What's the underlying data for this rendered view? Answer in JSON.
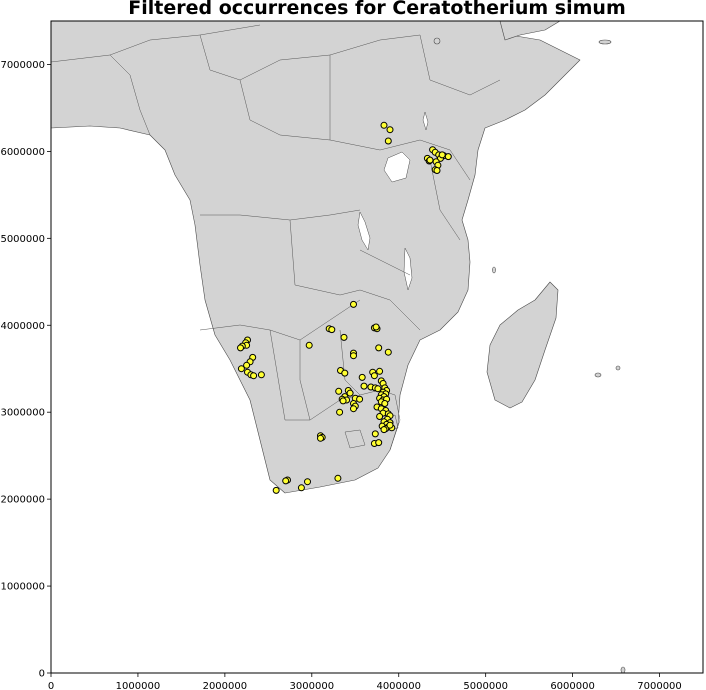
{
  "title": "Filtered occurrences for Ceratotherium simum",
  "chart_data": {
    "type": "scatter",
    "title": "Filtered occurrences for Ceratotherium simum",
    "xlim": [
      0,
      7500000
    ],
    "ylim": [
      0,
      7500000
    ],
    "xticks": [
      0,
      1000000,
      2000000,
      3000000,
      4000000,
      5000000,
      6000000,
      7000000
    ],
    "yticks": [
      0,
      1000000,
      2000000,
      3000000,
      4000000,
      5000000,
      6000000,
      7000000
    ],
    "xtick_labels": [
      "0",
      "1000000",
      "2000000",
      "3000000",
      "4000000",
      "5000000",
      "6000000",
      "7000000"
    ],
    "ytick_labels": [
      "0",
      "1000000",
      "2000000",
      "3000000",
      "4000000",
      "5000000",
      "6000000",
      "7000000"
    ],
    "grid": false,
    "land_color": "#d3d3d3",
    "ocean_color": "#ffffff",
    "marker_color": "#ffff33",
    "marker_edge_color": "#000000",
    "points": [
      [
        3830000,
        6300000
      ],
      [
        3900000,
        6250000
      ],
      [
        3880000,
        6120000
      ],
      [
        4390000,
        6020000
      ],
      [
        4420000,
        5990000
      ],
      [
        4460000,
        5960000
      ],
      [
        4520000,
        5950000
      ],
      [
        4570000,
        5940000
      ],
      [
        4330000,
        5920000
      ],
      [
        4350000,
        5890000
      ],
      [
        4480000,
        5920000
      ],
      [
        4430000,
        5880000
      ],
      [
        4450000,
        5840000
      ],
      [
        4420000,
        5790000
      ],
      [
        4440000,
        5780000
      ],
      [
        4360000,
        5900000
      ],
      [
        4500000,
        5960000
      ],
      [
        3480000,
        4240000
      ],
      [
        3200000,
        3960000
      ],
      [
        3230000,
        3950000
      ],
      [
        3720000,
        3970000
      ],
      [
        3750000,
        3960000
      ],
      [
        3740000,
        3980000
      ],
      [
        3370000,
        3860000
      ],
      [
        2970000,
        3770000
      ],
      [
        3480000,
        3680000
      ],
      [
        3480000,
        3650000
      ],
      [
        3770000,
        3740000
      ],
      [
        3880000,
        3690000
      ],
      [
        2260000,
        3830000
      ],
      [
        2240000,
        3800000
      ],
      [
        2250000,
        3770000
      ],
      [
        2200000,
        3760000
      ],
      [
        2180000,
        3740000
      ],
      [
        2320000,
        3630000
      ],
      [
        2290000,
        3580000
      ],
      [
        2250000,
        3540000
      ],
      [
        2190000,
        3500000
      ],
      [
        2260000,
        3460000
      ],
      [
        2300000,
        3430000
      ],
      [
        2330000,
        3420000
      ],
      [
        2420000,
        3430000
      ],
      [
        3330000,
        3480000
      ],
      [
        3380000,
        3450000
      ],
      [
        3580000,
        3400000
      ],
      [
        3700000,
        3460000
      ],
      [
        3780000,
        3470000
      ],
      [
        3720000,
        3420000
      ],
      [
        3800000,
        3360000
      ],
      [
        3820000,
        3330000
      ],
      [
        3600000,
        3300000
      ],
      [
        3680000,
        3290000
      ],
      [
        3730000,
        3280000
      ],
      [
        3760000,
        3270000
      ],
      [
        3840000,
        3280000
      ],
      [
        3860000,
        3250000
      ],
      [
        3820000,
        3230000
      ],
      [
        3850000,
        3210000
      ],
      [
        3800000,
        3200000
      ],
      [
        3830000,
        3180000
      ],
      [
        3780000,
        3160000
      ],
      [
        3820000,
        3140000
      ],
      [
        3860000,
        3150000
      ],
      [
        3800000,
        3120000
      ],
      [
        3840000,
        3100000
      ],
      [
        3420000,
        3250000
      ],
      [
        3310000,
        3240000
      ],
      [
        3440000,
        3220000
      ],
      [
        3380000,
        3180000
      ],
      [
        3500000,
        3160000
      ],
      [
        3550000,
        3150000
      ],
      [
        3350000,
        3150000
      ],
      [
        3400000,
        3140000
      ],
      [
        3360000,
        3130000
      ],
      [
        3480000,
        3100000
      ],
      [
        3500000,
        3070000
      ],
      [
        3480000,
        3040000
      ],
      [
        3320000,
        3000000
      ],
      [
        3750000,
        3060000
      ],
      [
        3800000,
        3040000
      ],
      [
        3850000,
        3020000
      ],
      [
        3820000,
        2990000
      ],
      [
        3880000,
        2980000
      ],
      [
        3900000,
        2960000
      ],
      [
        3780000,
        2950000
      ],
      [
        3870000,
        2920000
      ],
      [
        3830000,
        2890000
      ],
      [
        3900000,
        2880000
      ],
      [
        3860000,
        2860000
      ],
      [
        3810000,
        2840000
      ],
      [
        3880000,
        2830000
      ],
      [
        3920000,
        2820000
      ],
      [
        3850000,
        2810000
      ],
      [
        3830000,
        2800000
      ],
      [
        3900000,
        2850000
      ],
      [
        3730000,
        2750000
      ],
      [
        3100000,
        2730000
      ],
      [
        3120000,
        2710000
      ],
      [
        3100000,
        2700000
      ],
      [
        3720000,
        2640000
      ],
      [
        3770000,
        2650000
      ],
      [
        3300000,
        2240000
      ],
      [
        2720000,
        2220000
      ],
      [
        2700000,
        2210000
      ],
      [
        2950000,
        2200000
      ],
      [
        2880000,
        2130000
      ],
      [
        2590000,
        2100000
      ]
    ]
  }
}
